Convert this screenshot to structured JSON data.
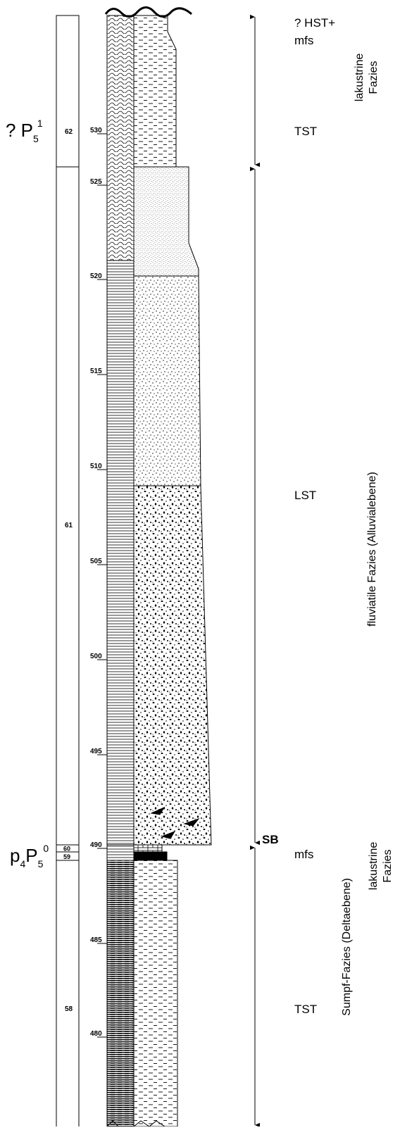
{
  "stage_labels": [
    [
      "? P",
      "5",
      "1"
    ],
    [
      "p",
      "4",
      "P",
      "5",
      "0"
    ]
  ],
  "beds": [
    62,
    61,
    60,
    59,
    58
  ],
  "depths": [
    530,
    525,
    520,
    515,
    510,
    505,
    500,
    495,
    490,
    485,
    480
  ],
  "sequence": {
    "hst": "? HST+",
    "mfs_top": "mfs",
    "tst_top": "TST",
    "lst": "LST",
    "sb": "SB",
    "mfs": "mfs",
    "tst": "TST"
  },
  "facies": [
    [
      "lakustrine",
      "Fazies"
    ],
    [
      "fluviatile Fazies (Alluvialebene)"
    ],
    [
      "lakustrine",
      "Fazies"
    ],
    [
      "Sumpf-Fazies (Deltaebene)"
    ]
  ]
}
